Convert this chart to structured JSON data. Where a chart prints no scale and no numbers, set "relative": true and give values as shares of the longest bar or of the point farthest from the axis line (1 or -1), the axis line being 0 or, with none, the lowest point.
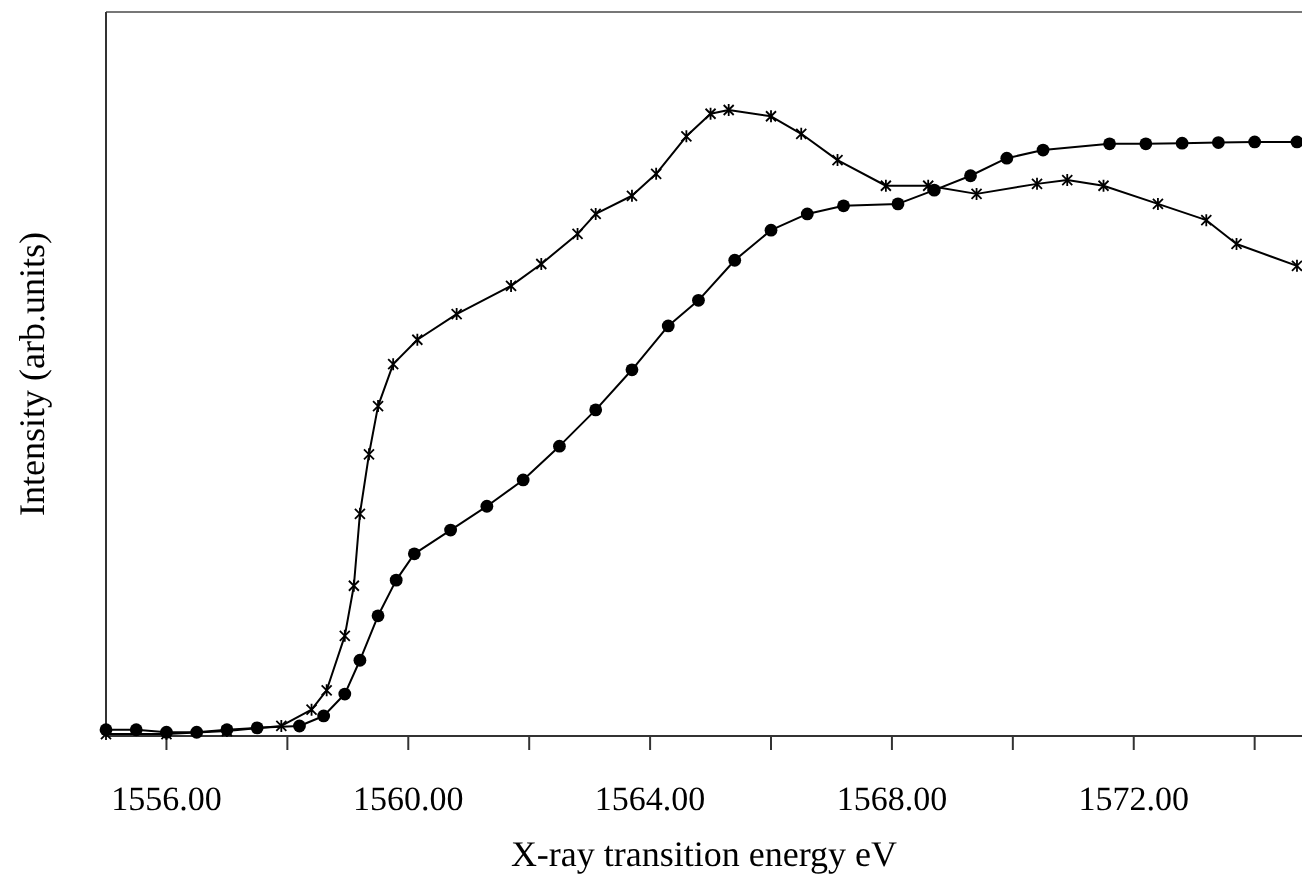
{
  "chart_data": {
    "type": "line",
    "relative": true,
    "xlabel": "X-ray transition energy eV",
    "ylabel": "Intensity (arb.units)",
    "xlim": [
      1555,
      1574.75
    ],
    "xticks": [
      {
        "value": 1556,
        "label": "1556.00"
      },
      {
        "value": 1558,
        "label": null
      },
      {
        "value": 1560,
        "label": "1560.00"
      },
      {
        "value": 1562,
        "label": null
      },
      {
        "value": 1564,
        "label": "1564.00"
      },
      {
        "value": 1566,
        "label": null
      },
      {
        "value": 1568,
        "label": "1568.00"
      },
      {
        "value": 1570,
        "label": null
      },
      {
        "value": 1572,
        "label": "1572.00"
      },
      {
        "value": 1574,
        "label": null
      }
    ],
    "grid": false,
    "line_style": "solid",
    "series": [
      {
        "color": "#000000",
        "marker": "cross",
        "x": [
          1555,
          1556,
          1557,
          1557.9,
          1558.4,
          1558.65,
          1558.95,
          1559.1,
          1559.2,
          1559.35,
          1559.5,
          1559.75,
          1560.15,
          1560.8,
          1561.7,
          1562.2,
          1562.8,
          1563.1,
          1563.7,
          1564.1,
          1564.6,
          1565,
          1565.3,
          1566,
          1566.5,
          1567.1,
          1567.9,
          1568.6,
          1569.4,
          1570.4,
          1570.9,
          1571.5,
          1572.4,
          1573.2,
          1573.7,
          1574.7
        ],
        "values": [
          0.003,
          0.003,
          0.008,
          0.016,
          0.042,
          0.073,
          0.16,
          0.24,
          0.355,
          0.45,
          0.527,
          0.594,
          0.633,
          0.674,
          0.719,
          0.754,
          0.802,
          0.834,
          0.863,
          0.898,
          0.958,
          0.994,
          1,
          0.99,
          0.962,
          0.92,
          0.879,
          0.879,
          0.866,
          0.882,
          0.888,
          0.879,
          0.85,
          0.824,
          0.786,
          0.751
        ]
      },
      {
        "color": "#000000",
        "marker": "circle",
        "x": [
          1555,
          1555.5,
          1556,
          1556.5,
          1557,
          1557.5,
          1558.2,
          1558.6,
          1558.95,
          1559.2,
          1559.5,
          1559.8,
          1560.1,
          1560.7,
          1561.3,
          1561.9,
          1562.5,
          1563.1,
          1563.7,
          1564.3,
          1564.8,
          1565.4,
          1566,
          1566.6,
          1567.2,
          1568.1,
          1568.7,
          1569.3,
          1569.9,
          1570.5,
          1571.6,
          1572.2,
          1572.8,
          1573.4,
          1574,
          1574.7
        ],
        "values": [
          0.01,
          0.01,
          0.006,
          0.006,
          0.01,
          0.013,
          0.016,
          0.032,
          0.067,
          0.121,
          0.192,
          0.249,
          0.291,
          0.329,
          0.367,
          0.409,
          0.463,
          0.521,
          0.585,
          0.655,
          0.696,
          0.76,
          0.808,
          0.834,
          0.847,
          0.85,
          0.872,
          0.895,
          0.923,
          0.936,
          0.946,
          0.946,
          0.947,
          0.948,
          0.949,
          0.949
        ]
      }
    ]
  }
}
